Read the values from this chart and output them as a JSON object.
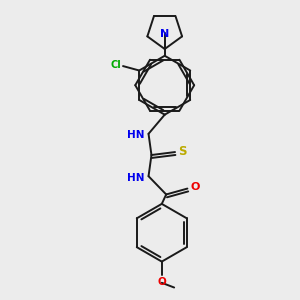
{
  "background_color": "#ececec",
  "bond_color": "#1a1a1a",
  "atom_colors": {
    "N": "#0000ee",
    "Cl": "#00aa00",
    "S": "#bbaa00",
    "O": "#ee0000",
    "C": "#1a1a1a",
    "H": "#4488aa"
  },
  "figsize": [
    3.0,
    3.0
  ],
  "dpi": 100,
  "xlim": [
    0,
    10
  ],
  "ylim": [
    0,
    10
  ]
}
